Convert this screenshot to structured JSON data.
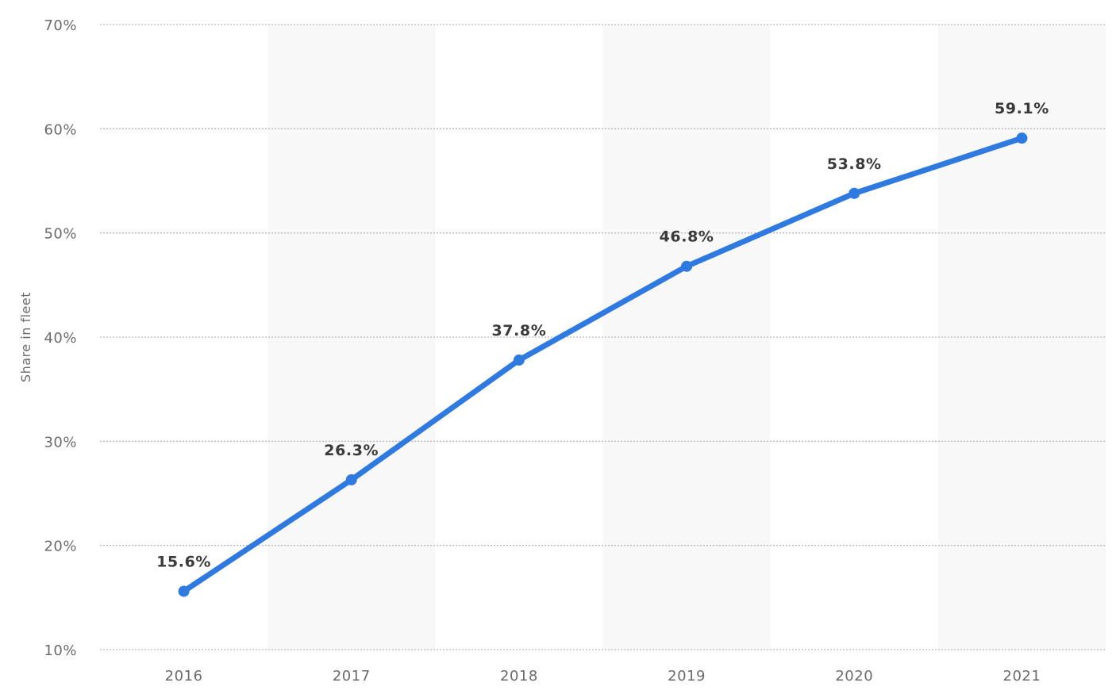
{
  "chart_data": {
    "type": "line",
    "categories": [
      "2016",
      "2017",
      "2018",
      "2019",
      "2020",
      "2021"
    ],
    "series": [
      {
        "values": [
          15.6,
          26.3,
          37.8,
          46.8,
          53.8,
          59.1
        ],
        "color": "#2f7ae0"
      }
    ],
    "data_labels": [
      "15.6%",
      "26.3%",
      "37.8%",
      "46.8%",
      "53.8%",
      "59.1%"
    ],
    "ylabel": "Share in fleet",
    "ylim": [
      10,
      70
    ],
    "yticks": [
      "70%",
      "60%",
      "50%",
      "40%",
      "30%",
      "20%",
      "10%"
    ],
    "grid": true,
    "band_color": "#f8f8f8"
  }
}
